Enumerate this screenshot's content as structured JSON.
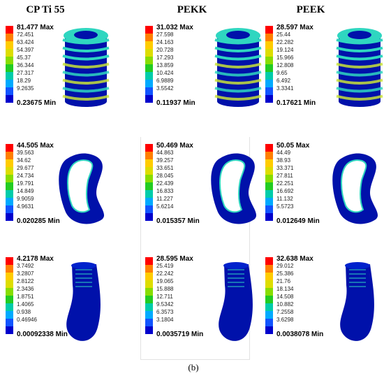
{
  "columns": [
    {
      "id": "cp-ti-55",
      "title": "CP Ti 55"
    },
    {
      "id": "pekk",
      "title": "PEKK"
    },
    {
      "id": "peek",
      "title": "PEEK"
    }
  ],
  "caption": "(b)",
  "legend_colors": [
    "#ff0000",
    "#ff7f00",
    "#ffcc00",
    "#dddd00",
    "#88dd00",
    "#22cc22",
    "#00ccaa",
    "#00aaff",
    "#1155ff",
    "#0000cc"
  ],
  "component_colors": {
    "high": "#c8e23a",
    "mid": "#2fd6c0",
    "low": "#0011aa"
  },
  "rows": [
    {
      "id": "implant",
      "panels": [
        {
          "max": "81.477 Max",
          "ticks": [
            "72.451",
            "63.424",
            "54.397",
            "45.37",
            "36.344",
            "27.317",
            "18.29",
            "9.2635"
          ],
          "min": "0.23675 Min"
        },
        {
          "max": "31.032 Max",
          "ticks": [
            "27.598",
            "24.163",
            "20.728",
            "17.293",
            "13.859",
            "10.424",
            "6.9889",
            "3.5542"
          ],
          "min": "0.11937 Min"
        },
        {
          "max": "28.597 Max",
          "ticks": [
            "25.44",
            "22.282",
            "19.124",
            "15.966",
            "12.808",
            "9.65",
            "6.492",
            "3.3341"
          ],
          "min": "0.17621 Min"
        }
      ]
    },
    {
      "id": "cortical-bone",
      "panels": [
        {
          "max": "44.505 Max",
          "ticks": [
            "39.563",
            "34.62",
            "29.677",
            "24.734",
            "19.791",
            "14.849",
            "9.9059",
            "4.9631"
          ],
          "min": "0.020285 Min"
        },
        {
          "max": "50.469 Max",
          "ticks": [
            "44.863",
            "39.257",
            "33.651",
            "28.045",
            "22.439",
            "16.833",
            "11.227",
            "5.6214"
          ],
          "min": "0.015357 Min"
        },
        {
          "max": "50.05 Max",
          "ticks": [
            "44.49",
            "38.93",
            "33.371",
            "27.811",
            "22.251",
            "16.692",
            "11.132",
            "5.5723"
          ],
          "min": "0.012649 Min"
        }
      ]
    },
    {
      "id": "cancellous-bone",
      "panels": [
        {
          "max": "4.2178 Max",
          "ticks": [
            "3.7492",
            "3.2807",
            "2.8122",
            "2.3436",
            "1.8751",
            "1.4065",
            "0.938",
            "0.46946"
          ],
          "min": "0.00092338 Min"
        },
        {
          "max": "28.595 Max",
          "ticks": [
            "25.419",
            "22.242",
            "19.065",
            "15.888",
            "12.711",
            "9.5342",
            "6.3573",
            "3.1804"
          ],
          "min": "0.0035719 Min"
        },
        {
          "max": "32.638 Max",
          "ticks": [
            "29.012",
            "25.386",
            "21.76",
            "18.134",
            "14.508",
            "10.882",
            "7.2558",
            "3.6298"
          ],
          "min": "0.0038078 Min"
        }
      ]
    }
  ]
}
